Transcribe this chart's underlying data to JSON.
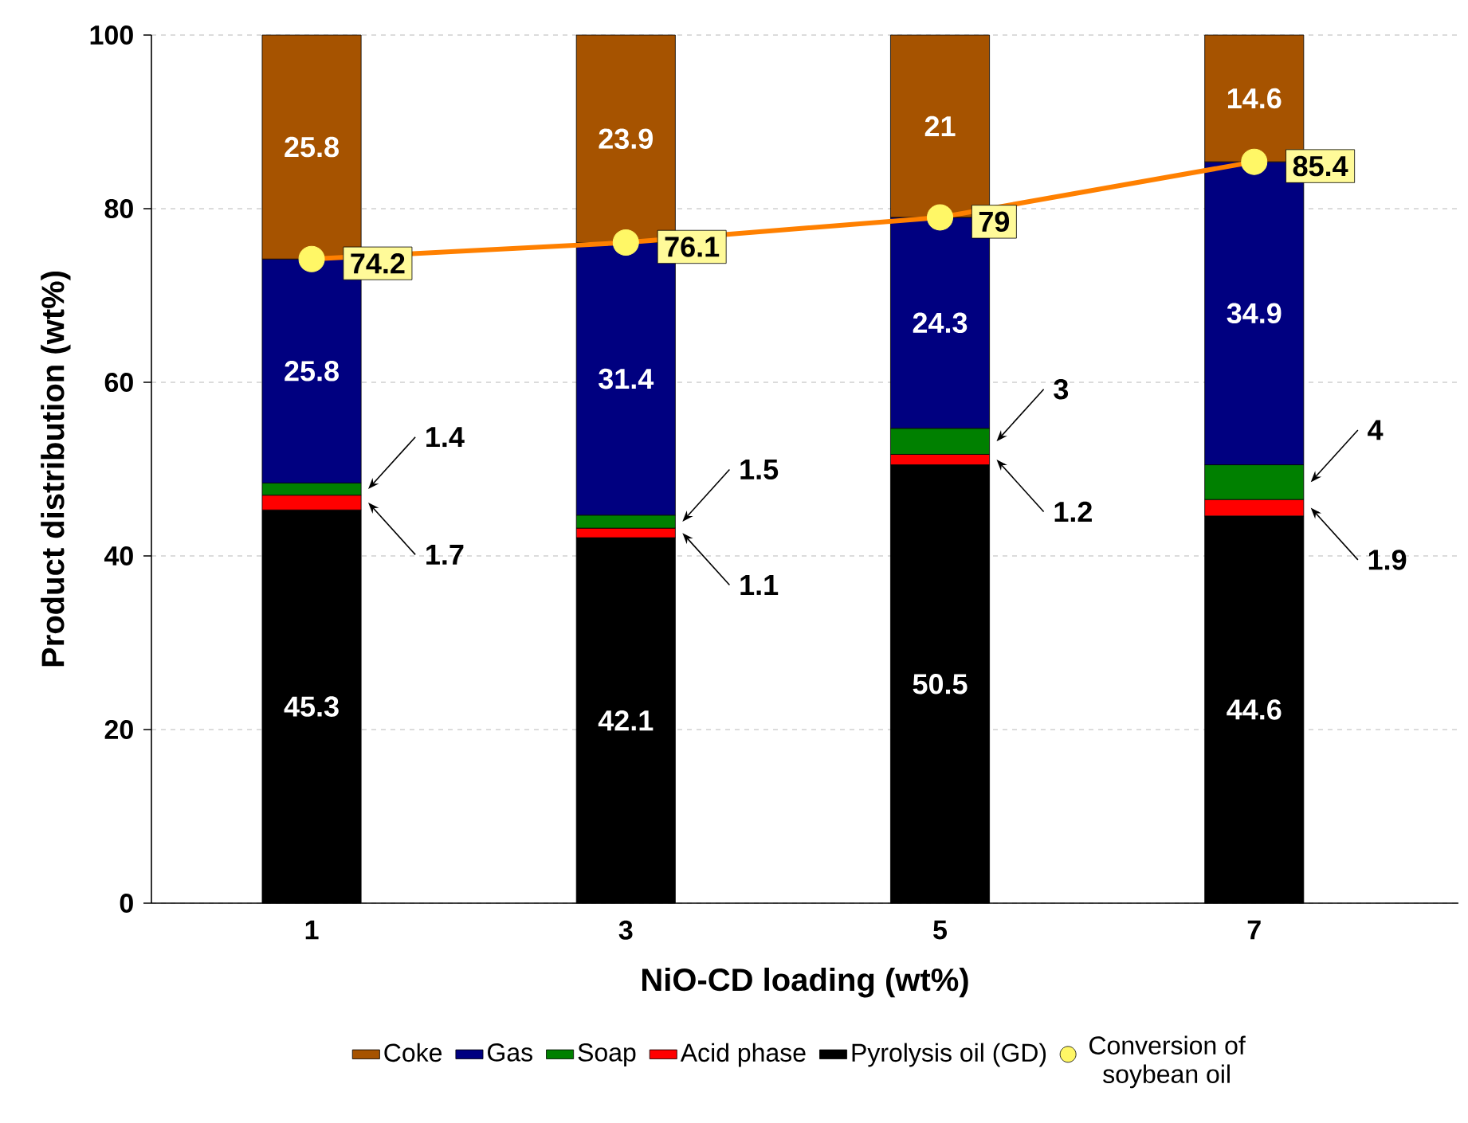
{
  "chart_data": {
    "type": "bar",
    "stacked": true,
    "xlabel": "NiO-CD loading (wt%)",
    "ylabel": "Product distribution (wt%)",
    "categories": [
      "1",
      "3",
      "5",
      "7"
    ],
    "series": [
      {
        "name": "Pyrolysis oil (GD)",
        "color": "#000000",
        "values": [
          45.3,
          42.1,
          50.5,
          44.6
        ]
      },
      {
        "name": "Acid phase",
        "color": "#ff0000",
        "values": [
          1.7,
          1.1,
          1.2,
          1.9
        ]
      },
      {
        "name": "Soap",
        "color": "#008000",
        "values": [
          1.4,
          1.5,
          3,
          4
        ]
      },
      {
        "name": "Gas",
        "color": "#000080",
        "values": [
          25.8,
          31.4,
          24.3,
          34.9
        ]
      },
      {
        "name": "Coke",
        "color": "#a65300",
        "values": [
          25.8,
          23.9,
          21,
          14.6
        ]
      },
      {
        "name": "Conversion of soybean oil",
        "type": "line",
        "color": "#ff8000",
        "marker": "circle",
        "values": [
          74.2,
          76.1,
          79,
          85.4
        ]
      }
    ],
    "ylim": [
      0,
      100
    ],
    "yticks": [
      0,
      20,
      40,
      60,
      80,
      100
    ],
    "grid": "y",
    "legend": "bottom",
    "data_labels": true
  }
}
